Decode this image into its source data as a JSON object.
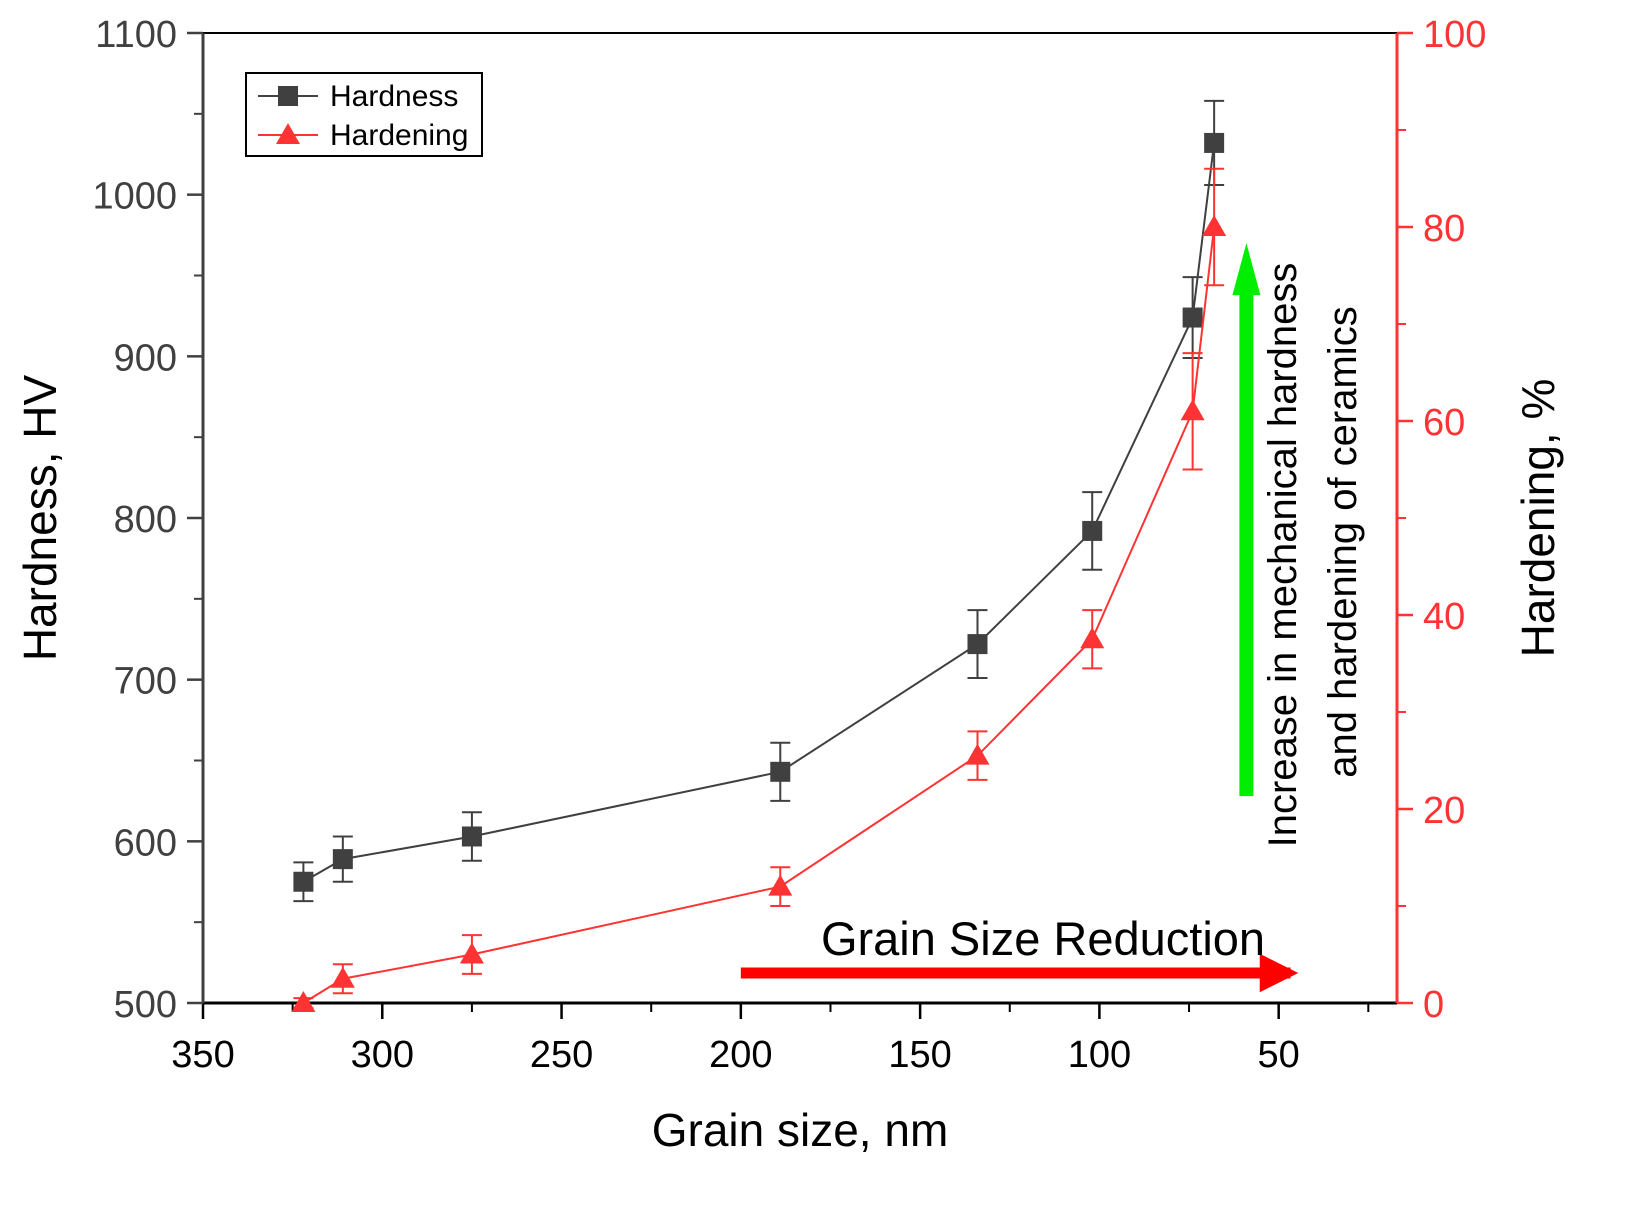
{
  "chart_data": {
    "type": "line",
    "xlabel": "Grain size, nm",
    "ylabel_left": "Hardness, HV",
    "ylabel_right": "Hardening, %",
    "x_axis": {
      "min": 350,
      "max": 17,
      "reversed": true,
      "ticks": [
        350,
        300,
        250,
        200,
        150,
        100,
        50
      ],
      "tick_labels": [
        "350",
        "300",
        "250",
        "200",
        "150",
        "100",
        "50"
      ]
    },
    "y_left": {
      "min": 500,
      "max": 1100,
      "ticks": [
        500,
        600,
        700,
        800,
        900,
        1000,
        1100
      ],
      "tick_labels": [
        "500",
        "600",
        "700",
        "800",
        "900",
        "1000",
        "1100"
      ],
      "color": "#404040"
    },
    "y_right": {
      "min": 0,
      "max": 100,
      "ticks": [
        0,
        20,
        40,
        60,
        80,
        100
      ],
      "tick_labels": [
        "0",
        "20",
        "40",
        "60",
        "80",
        "100"
      ],
      "color": "#ff3333"
    },
    "series": [
      {
        "name": "Hardness",
        "axis": "left",
        "marker": "square",
        "color": "#404040",
        "x": [
          322,
          311,
          275,
          189,
          134,
          102,
          74,
          68
        ],
        "y": [
          575,
          589,
          603,
          643,
          722,
          792,
          924,
          1032
        ],
        "err": [
          12,
          14,
          15,
          18,
          21,
          24,
          25,
          26
        ]
      },
      {
        "name": "Hardening",
        "axis": "right",
        "marker": "triangle",
        "color": "#ff3333",
        "x": [
          322,
          311,
          275,
          189,
          134,
          102,
          74,
          68
        ],
        "y": [
          0,
          2.5,
          5,
          12,
          25.5,
          37.5,
          61,
          80
        ],
        "err": [
          0.5,
          1.5,
          2,
          2,
          2.5,
          3,
          6,
          6
        ]
      }
    ],
    "legend": {
      "position": "top-left",
      "entries": [
        "Hardness",
        "Hardening"
      ]
    },
    "annotations": {
      "horizontal_arrow": {
        "text": "Grain Size Reduction",
        "color": "#ff0000",
        "x_start": 200,
        "x_end": 40
      },
      "vertical_arrow": {
        "lines": [
          "Increase in mechanical hardness",
          "and hardening of ceramics"
        ],
        "color": "#00ee00",
        "x": 59,
        "y_left_start": 628,
        "y_left_end": 970
      }
    },
    "grid": false
  }
}
